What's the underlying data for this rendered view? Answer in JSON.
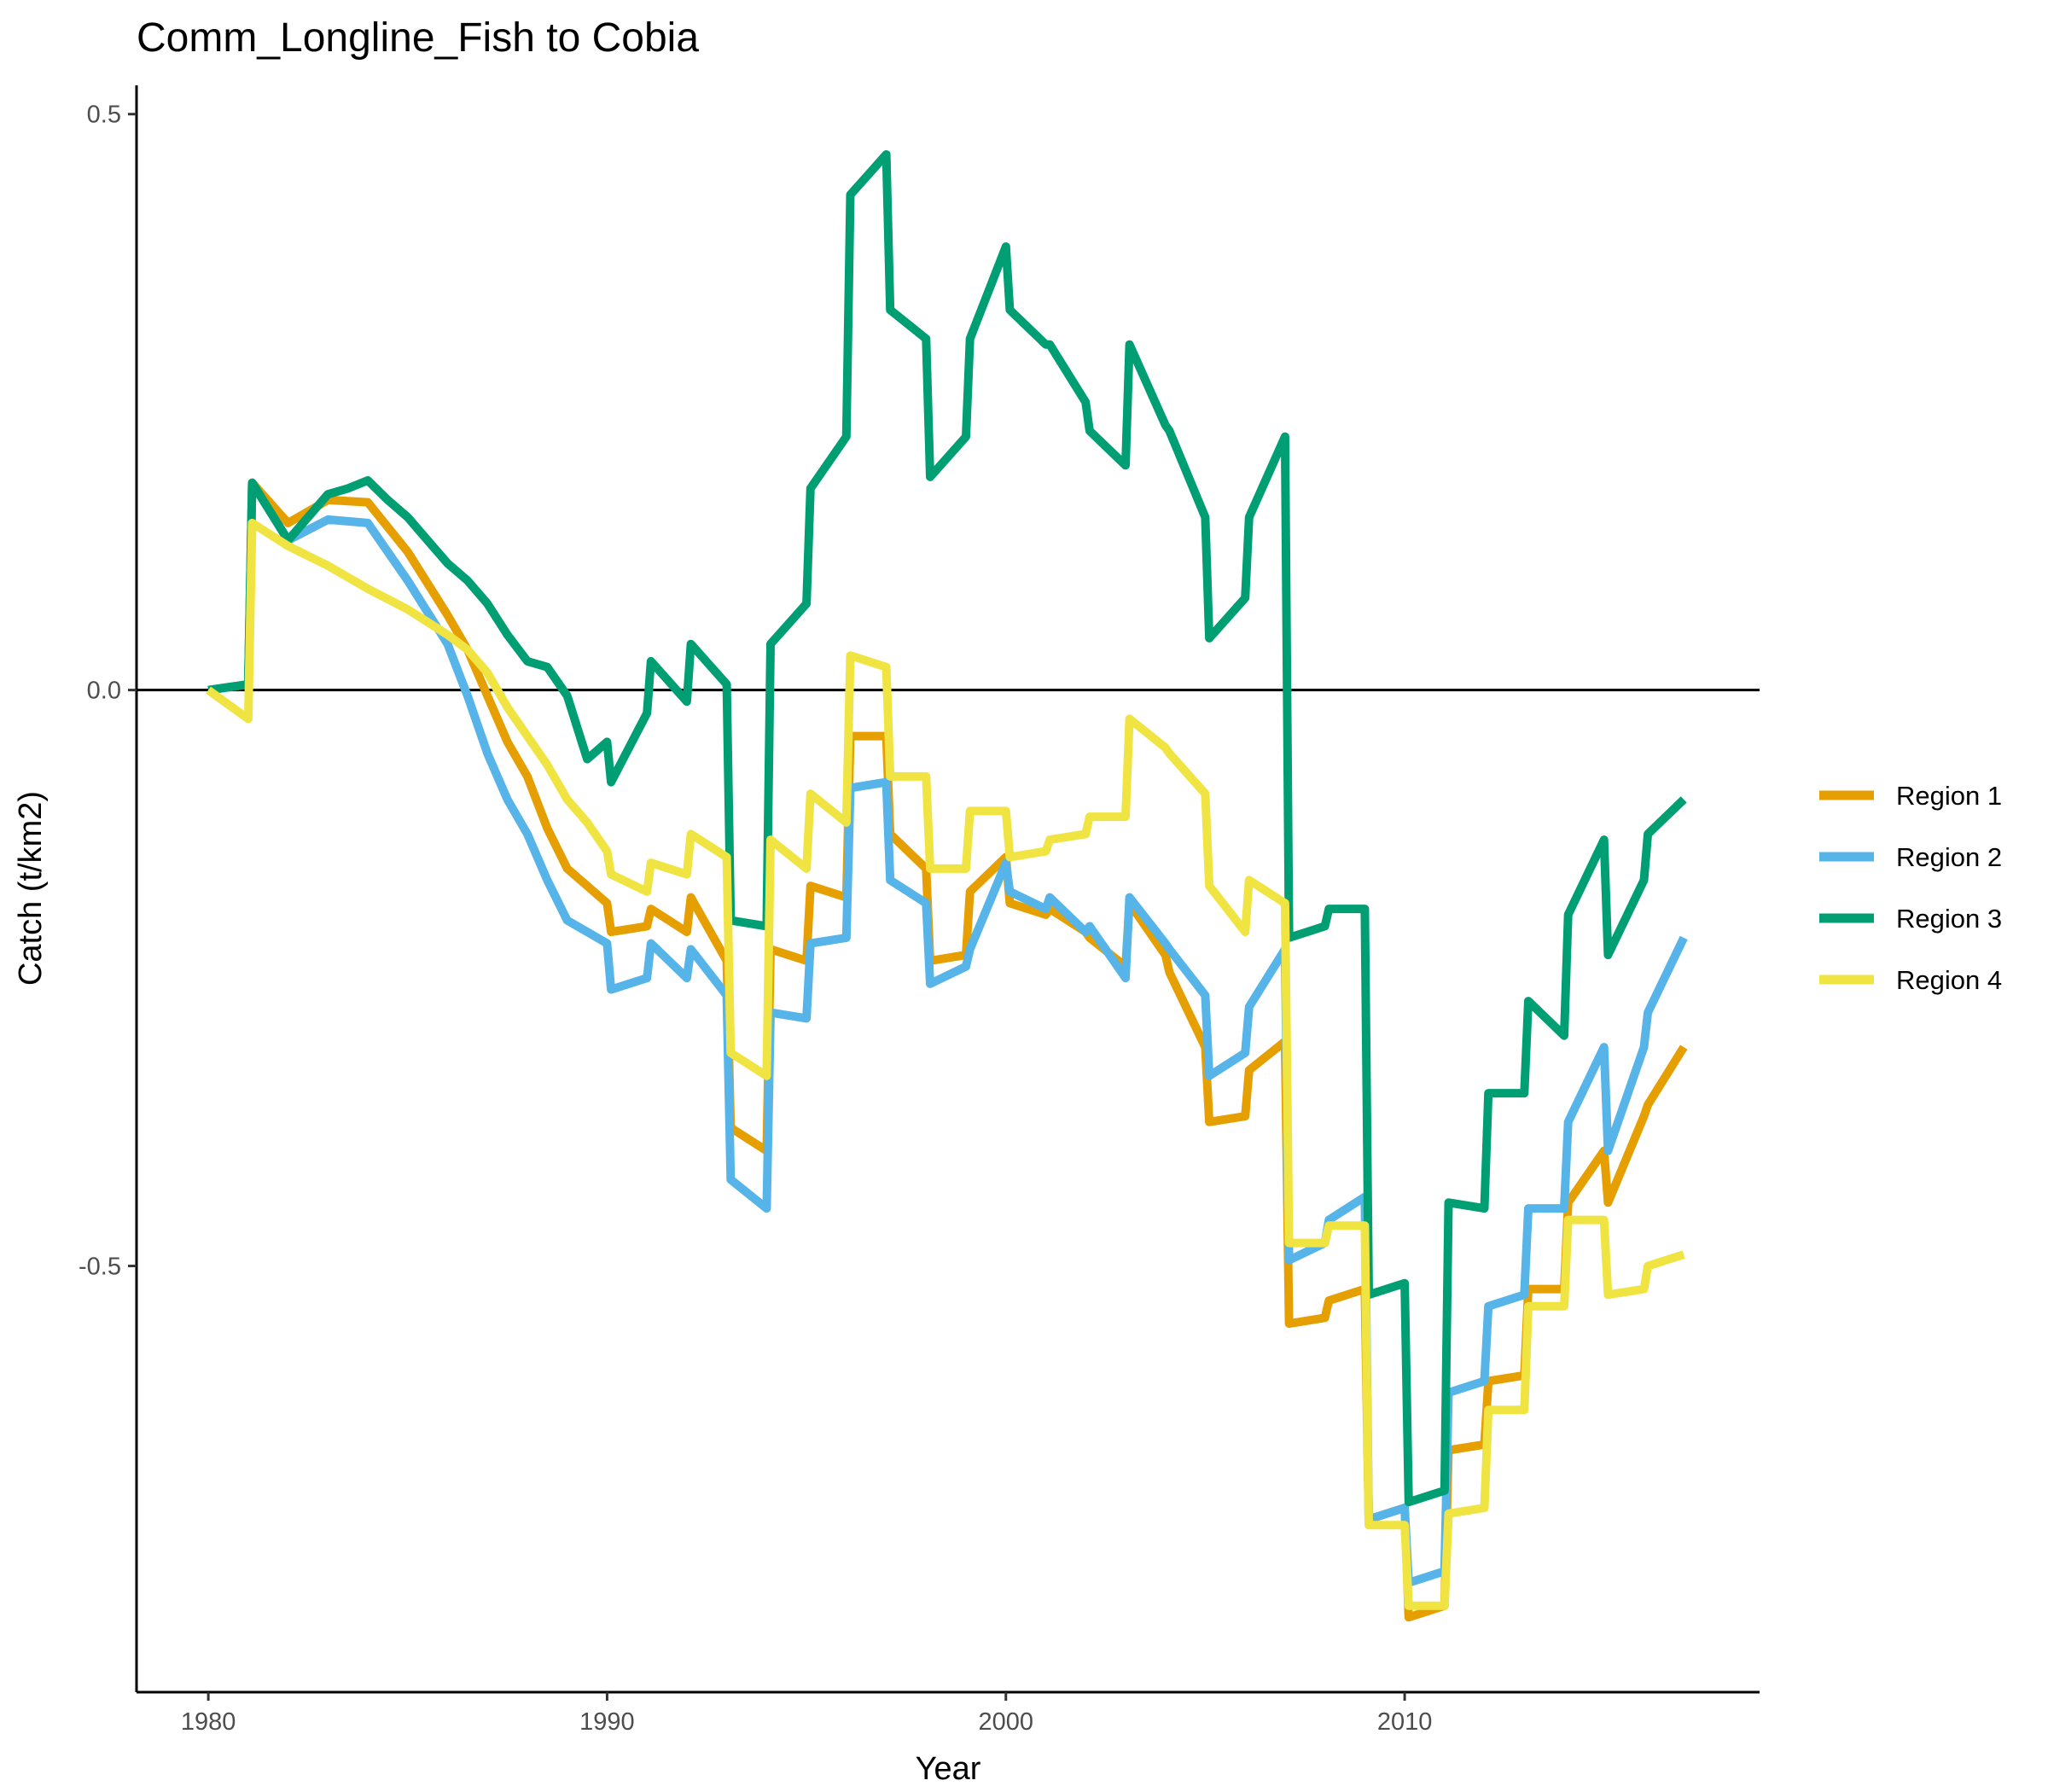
{
  "chart_data": {
    "type": "line",
    "title": "Comm_Longline_Fish to Cobia",
    "xlabel": "Year",
    "ylabel": "Catch (t/km2)",
    "xlim": [
      1978.2,
      2018.9
    ],
    "ylim": [
      -0.87,
      0.525
    ],
    "xticks": [
      1980,
      1990,
      2000,
      2010
    ],
    "yticks": [
      0.5,
      0.0,
      -0.5
    ],
    "ytick_labels": [
      "0.5",
      "0.0",
      "-0.5"
    ],
    "hline": 0,
    "grid": false,
    "legend_position": "right",
    "series": [
      {
        "name": "Region 1",
        "color": "#E69F00",
        "x": [
          1980.0,
          1981.0,
          1981.1,
          1982.0,
          1983.0,
          1984.0,
          1985.0,
          1986.0,
          1986.5,
          1987.0,
          1987.5,
          1988.0,
          1988.5,
          1989.0,
          1989.5,
          1990.0,
          1990.1,
          1991.0,
          1991.1,
          1992.0,
          1992.1,
          1993.0,
          1993.1,
          1994.0,
          1994.1,
          1995.0,
          1995.1,
          1996.0,
          1996.1,
          1997.0,
          1997.1,
          1998.0,
          1998.1,
          1999.0,
          1999.1,
          2000.0,
          2000.1,
          2001.0,
          2001.1,
          2002.0,
          2002.1,
          2003.0,
          2003.1,
          2004.0,
          2004.1,
          2005.0,
          2005.1,
          2006.0,
          2006.1,
          2007.0,
          2007.1,
          2008.0,
          2008.1,
          2009.0,
          2009.1,
          2010.0,
          2010.1,
          2011.0,
          2011.1,
          2012.0,
          2012.1,
          2013.0,
          2013.1,
          2014.0,
          2014.1,
          2015.0,
          2015.1,
          2016.0,
          2016.1,
          2017.0
        ],
        "y": [
          0.0,
          0.005,
          0.18,
          0.145,
          0.165,
          0.163,
          0.12,
          0.065,
          0.035,
          -0.005,
          -0.045,
          -0.075,
          -0.12,
          -0.155,
          -0.17,
          -0.185,
          -0.21,
          -0.205,
          -0.19,
          -0.21,
          -0.18,
          -0.235,
          -0.38,
          -0.4,
          -0.225,
          -0.235,
          -0.17,
          -0.18,
          -0.04,
          -0.04,
          -0.125,
          -0.155,
          -0.235,
          -0.23,
          -0.175,
          -0.145,
          -0.185,
          -0.195,
          -0.19,
          -0.21,
          -0.215,
          -0.24,
          -0.185,
          -0.23,
          -0.245,
          -0.31,
          -0.375,
          -0.37,
          -0.33,
          -0.305,
          -0.55,
          -0.545,
          -0.53,
          -0.52,
          -0.72,
          -0.71,
          -0.805,
          -0.795,
          -0.66,
          -0.655,
          -0.6,
          -0.595,
          -0.52,
          -0.52,
          -0.445,
          -0.4,
          -0.445,
          -0.37,
          -0.36,
          -0.31
        ]
      },
      {
        "name": "Region 2",
        "color": "#56B4E9",
        "x": [
          1980.0,
          1981.0,
          1981.1,
          1982.0,
          1983.0,
          1984.0,
          1985.0,
          1986.0,
          1986.5,
          1987.0,
          1987.5,
          1988.0,
          1988.5,
          1989.0,
          1989.5,
          1990.0,
          1990.1,
          1991.0,
          1991.1,
          1992.0,
          1992.1,
          1993.0,
          1993.1,
          1994.0,
          1994.1,
          1995.0,
          1995.1,
          1996.0,
          1996.1,
          1997.0,
          1997.1,
          1998.0,
          1998.1,
          1999.0,
          1999.1,
          2000.0,
          2000.1,
          2001.0,
          2001.1,
          2002.0,
          2002.1,
          2003.0,
          2003.1,
          2004.0,
          2004.1,
          2005.0,
          2005.1,
          2006.0,
          2006.1,
          2007.0,
          2007.1,
          2008.0,
          2008.1,
          2009.0,
          2009.1,
          2010.0,
          2010.1,
          2011.0,
          2011.1,
          2012.0,
          2012.1,
          2013.0,
          2013.1,
          2014.0,
          2014.1,
          2015.0,
          2015.1,
          2016.0,
          2016.1,
          2017.0
        ],
        "y": [
          0.0,
          0.005,
          0.18,
          0.13,
          0.148,
          0.145,
          0.095,
          0.04,
          -0.005,
          -0.055,
          -0.095,
          -0.125,
          -0.165,
          -0.2,
          -0.21,
          -0.22,
          -0.26,
          -0.25,
          -0.22,
          -0.25,
          -0.225,
          -0.265,
          -0.425,
          -0.45,
          -0.28,
          -0.285,
          -0.22,
          -0.215,
          -0.085,
          -0.08,
          -0.165,
          -0.185,
          -0.255,
          -0.24,
          -0.225,
          -0.15,
          -0.175,
          -0.19,
          -0.18,
          -0.21,
          -0.205,
          -0.25,
          -0.18,
          -0.22,
          -0.225,
          -0.265,
          -0.335,
          -0.315,
          -0.275,
          -0.225,
          -0.495,
          -0.48,
          -0.46,
          -0.44,
          -0.72,
          -0.71,
          -0.775,
          -0.765,
          -0.61,
          -0.6,
          -0.535,
          -0.525,
          -0.45,
          -0.45,
          -0.375,
          -0.31,
          -0.4,
          -0.31,
          -0.28,
          -0.215
        ]
      },
      {
        "name": "Region 3",
        "color": "#009E73",
        "x": [
          1980.0,
          1981.0,
          1981.1,
          1982.0,
          1983.0,
          1983.5,
          1984.0,
          1984.5,
          1985.0,
          1985.5,
          1986.0,
          1986.5,
          1987.0,
          1987.5,
          1988.0,
          1988.5,
          1989.0,
          1989.5,
          1990.0,
          1990.1,
          1991.0,
          1991.1,
          1992.0,
          1992.1,
          1993.0,
          1993.1,
          1994.0,
          1994.1,
          1995.0,
          1995.1,
          1996.0,
          1996.1,
          1997.0,
          1997.1,
          1998.0,
          1998.1,
          1999.0,
          1999.1,
          2000.0,
          2000.1,
          2001.0,
          2001.1,
          2002.0,
          2002.1,
          2003.0,
          2003.1,
          2004.0,
          2004.1,
          2005.0,
          2005.1,
          2006.0,
          2006.1,
          2007.0,
          2007.1,
          2008.0,
          2008.1,
          2009.0,
          2009.1,
          2010.0,
          2010.1,
          2011.0,
          2011.1,
          2012.0,
          2012.1,
          2013.0,
          2013.1,
          2014.0,
          2014.1,
          2015.0,
          2015.1,
          2016.0,
          2016.1,
          2017.0
        ],
        "y": [
          0.0,
          0.005,
          0.18,
          0.13,
          0.17,
          0.175,
          0.182,
          0.165,
          0.15,
          0.13,
          0.11,
          0.095,
          0.075,
          0.048,
          0.025,
          0.02,
          -0.005,
          -0.06,
          -0.045,
          -0.08,
          -0.02,
          0.025,
          -0.01,
          0.04,
          0.005,
          -0.2,
          -0.205,
          0.04,
          0.075,
          0.175,
          0.22,
          0.43,
          0.465,
          0.33,
          0.305,
          0.185,
          0.22,
          0.305,
          0.385,
          0.33,
          0.3,
          0.3,
          0.25,
          0.225,
          0.195,
          0.3,
          0.23,
          0.225,
          0.15,
          0.045,
          0.08,
          0.15,
          0.22,
          -0.215,
          -0.205,
          -0.19,
          -0.19,
          -0.525,
          -0.515,
          -0.705,
          -0.695,
          -0.445,
          -0.45,
          -0.35,
          -0.35,
          -0.27,
          -0.3,
          -0.195,
          -0.13,
          -0.23,
          -0.165,
          -0.125,
          -0.095
        ]
      },
      {
        "name": "Region 4",
        "color": "#F0E442",
        "x": [
          1980.0,
          1981.0,
          1981.1,
          1982.0,
          1983.0,
          1984.0,
          1985.0,
          1986.0,
          1986.5,
          1987.0,
          1987.5,
          1988.0,
          1988.5,
          1989.0,
          1989.5,
          1990.0,
          1990.1,
          1991.0,
          1991.1,
          1992.0,
          1992.1,
          1993.0,
          1993.1,
          1994.0,
          1994.1,
          1995.0,
          1995.1,
          1996.0,
          1996.1,
          1997.0,
          1997.1,
          1998.0,
          1998.1,
          1999.0,
          1999.1,
          2000.0,
          2000.1,
          2001.0,
          2001.1,
          2002.0,
          2002.1,
          2003.0,
          2003.1,
          2004.0,
          2004.1,
          2005.0,
          2005.1,
          2006.0,
          2006.1,
          2007.0,
          2007.1,
          2008.0,
          2008.1,
          2009.0,
          2009.1,
          2010.0,
          2010.1,
          2011.0,
          2011.1,
          2012.0,
          2012.1,
          2013.0,
          2013.1,
          2014.0,
          2014.1,
          2015.0,
          2015.1,
          2016.0,
          2016.1,
          2017.0
        ],
        "y": [
          0.0,
          -0.025,
          0.145,
          0.125,
          0.108,
          0.088,
          0.07,
          0.048,
          0.035,
          0.015,
          -0.015,
          -0.04,
          -0.065,
          -0.095,
          -0.115,
          -0.14,
          -0.16,
          -0.175,
          -0.15,
          -0.16,
          -0.125,
          -0.145,
          -0.315,
          -0.335,
          -0.13,
          -0.155,
          -0.09,
          -0.115,
          0.03,
          0.02,
          -0.075,
          -0.075,
          -0.155,
          -0.155,
          -0.105,
          -0.105,
          -0.145,
          -0.14,
          -0.13,
          -0.125,
          -0.11,
          -0.11,
          -0.025,
          -0.05,
          -0.055,
          -0.09,
          -0.17,
          -0.21,
          -0.165,
          -0.185,
          -0.48,
          -0.48,
          -0.465,
          -0.465,
          -0.725,
          -0.725,
          -0.795,
          -0.795,
          -0.715,
          -0.71,
          -0.625,
          -0.625,
          -0.535,
          -0.535,
          -0.46,
          -0.46,
          -0.525,
          -0.52,
          -0.5,
          -0.49
        ]
      }
    ]
  }
}
